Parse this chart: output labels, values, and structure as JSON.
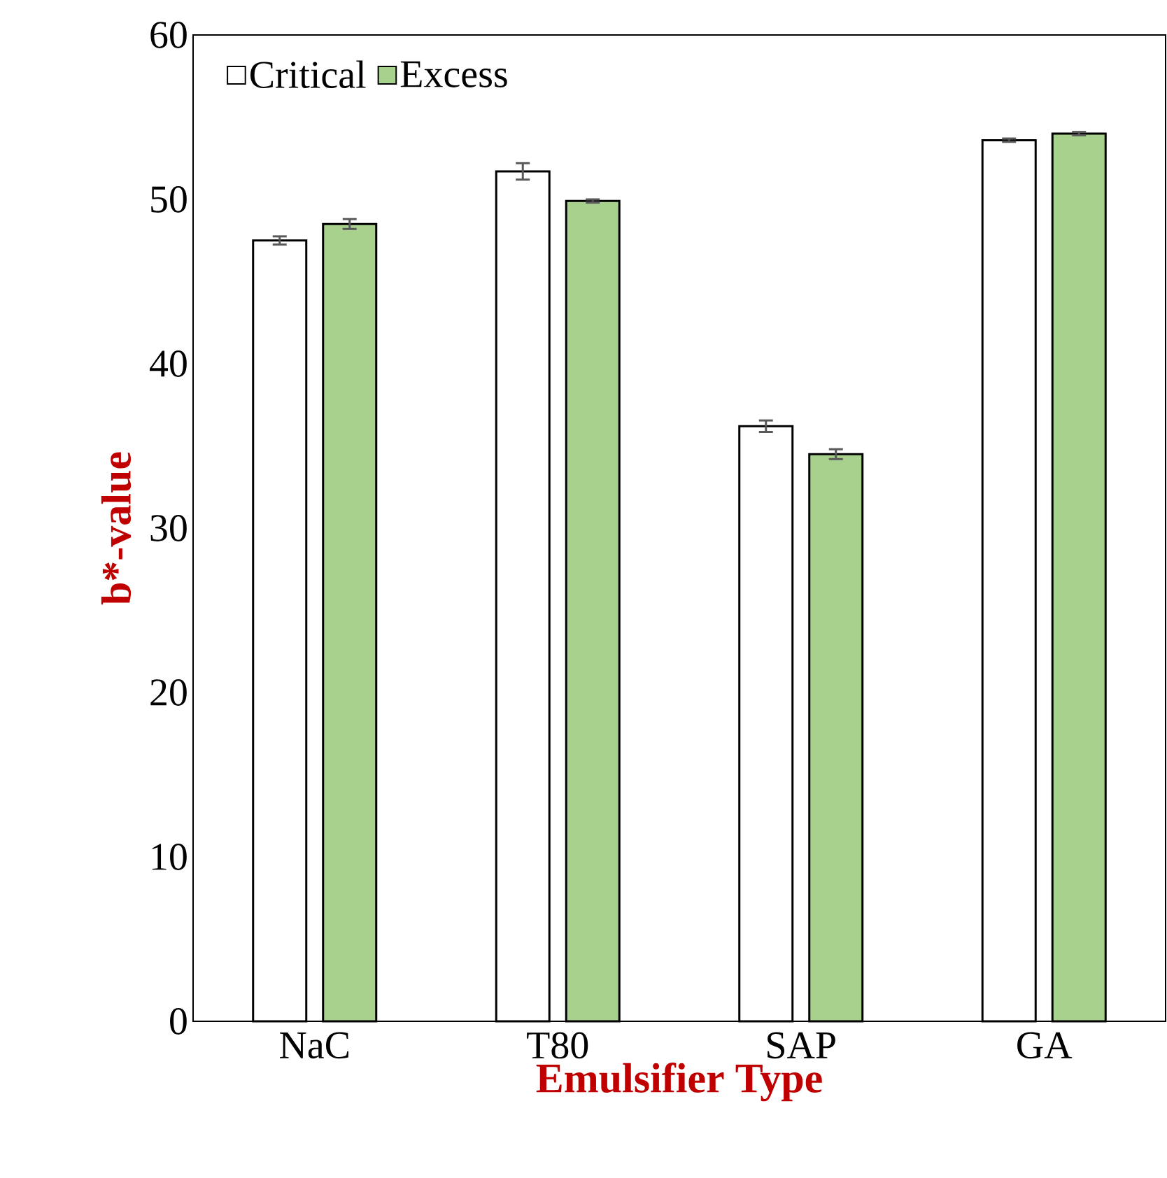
{
  "chart_data": {
    "type": "bar",
    "xlabel": "Emulsifier Type",
    "ylabel": "b*-value",
    "categories": [
      "NaC",
      "T80",
      "SAP",
      "GA"
    ],
    "series": [
      {
        "name": "Critical",
        "color": "#ffffff",
        "values": [
          47.5,
          51.7,
          36.2,
          53.6
        ],
        "errors": [
          0.25,
          0.5,
          0.35,
          0.1
        ]
      },
      {
        "name": "Excess",
        "color": "#a9d18e",
        "values": [
          48.5,
          49.9,
          34.5,
          54.0
        ],
        "errors": [
          0.3,
          0.1,
          0.3,
          0.1
        ]
      }
    ],
    "ylim": [
      0,
      60
    ],
    "yticks": [
      0,
      10,
      20,
      30,
      40,
      50,
      60
    ],
    "grid": false,
    "legend": "top left"
  }
}
